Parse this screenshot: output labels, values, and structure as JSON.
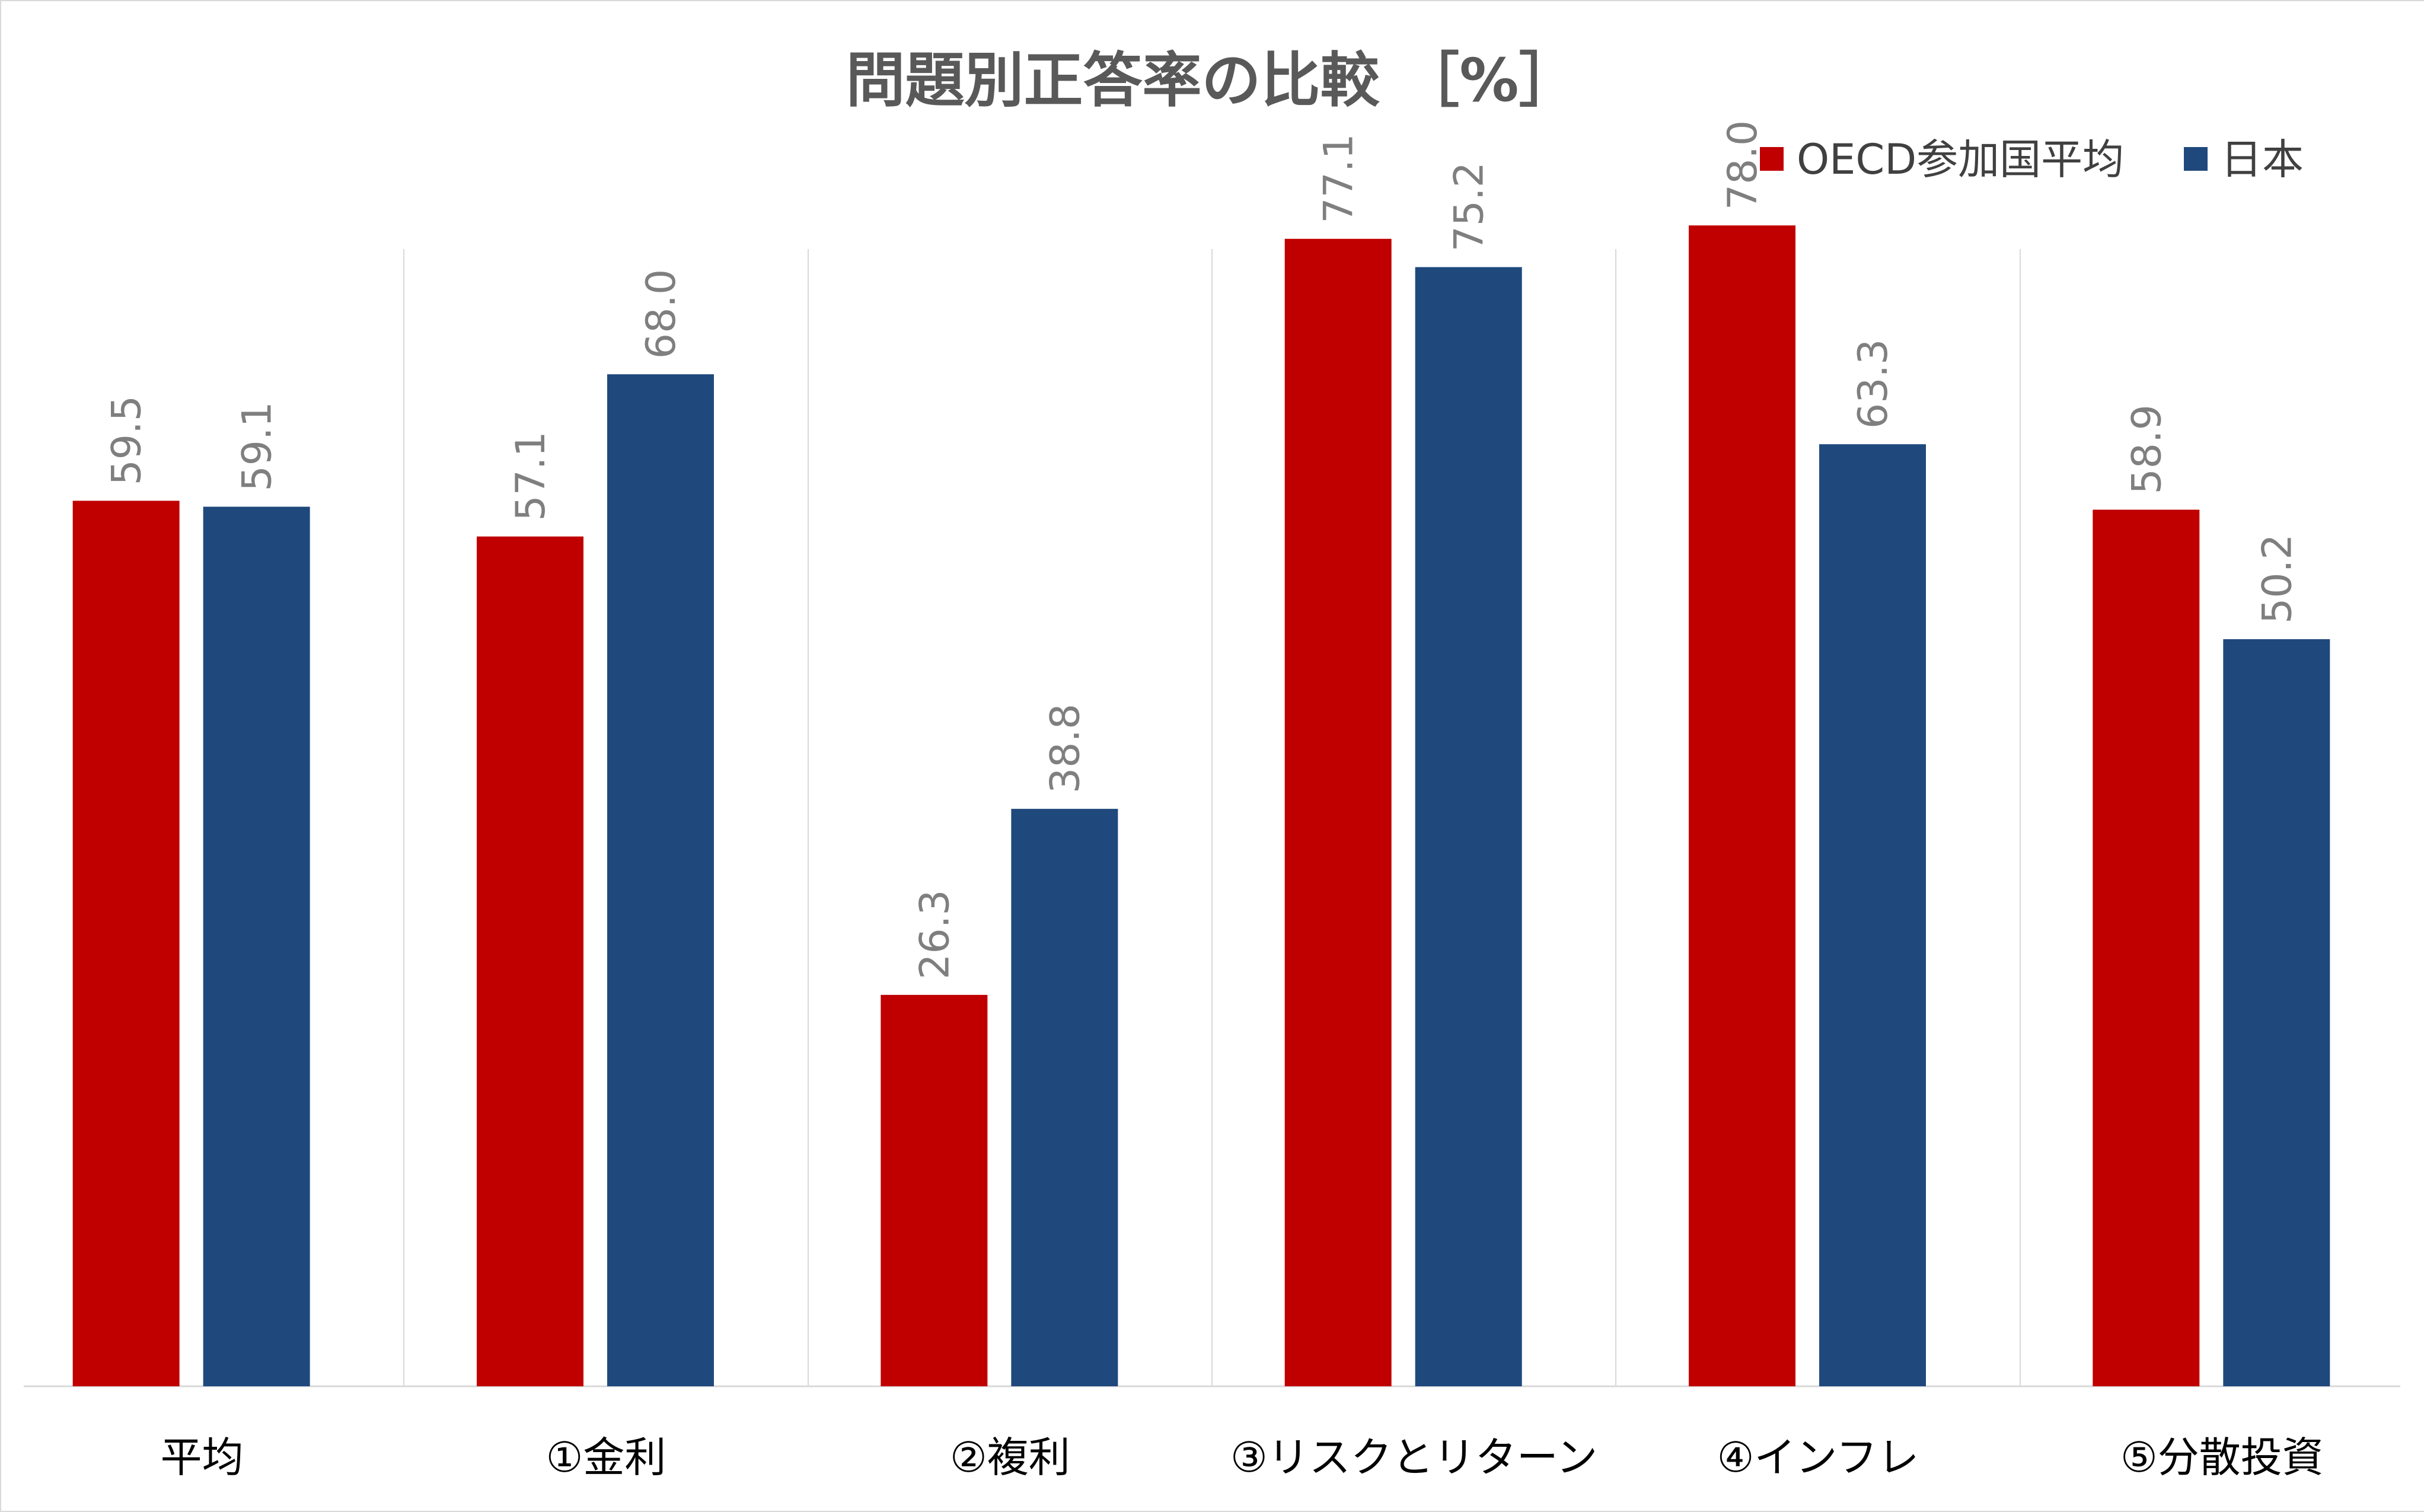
{
  "chart_data": {
    "type": "bar",
    "title": "問題別正答率の比較 ［%］",
    "categories": [
      "平均",
      "①金利",
      "②複利",
      "③リスクとリターン",
      "④インフレ",
      "⑤分散投資"
    ],
    "series": [
      {
        "name": "OECD参加国平均",
        "color": "#c00000",
        "values": [
          59.5,
          57.1,
          26.3,
          77.1,
          78.0,
          58.9
        ],
        "value_labels": [
          "59.5",
          "57.1",
          "26.3",
          "77.1",
          "78.0",
          "58.9"
        ]
      },
      {
        "name": "日本",
        "color": "#1f497d",
        "values": [
          59.1,
          68.0,
          38.8,
          75.2,
          63.3,
          50.2
        ],
        "value_labels": [
          "59.1",
          "68.0",
          "38.8",
          "75.2",
          "63.3",
          "50.2"
        ]
      }
    ],
    "ylim": [
      0,
      100
    ],
    "xlabel": "",
    "ylabel": "",
    "grid": "vertical category separators",
    "legend": "top-right",
    "data_labels": "rotated 90 degrees above bars"
  },
  "colors": {
    "title": "#595959",
    "value_label": "#7f7f7f",
    "separator": "#d9d9d9",
    "axis": "#d9d9d9"
  }
}
